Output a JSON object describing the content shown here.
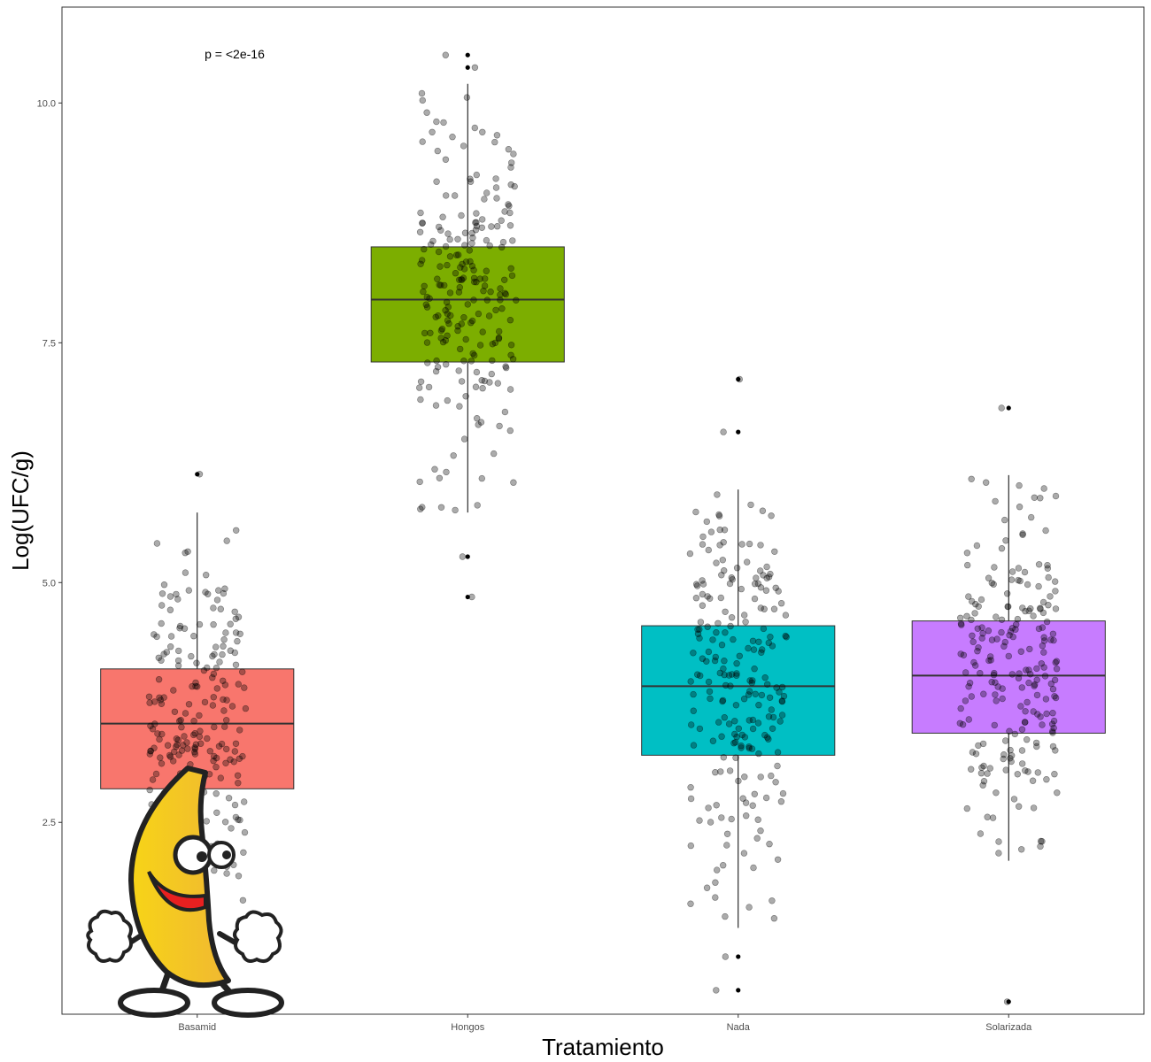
{
  "chart_data": {
    "type": "boxplot",
    "xlabel": "Tratamiento",
    "ylabel": "Log(UFC/g)",
    "annotation": "p = <2e-16",
    "categories": [
      "Basamid",
      "Hongos",
      "Nada",
      "Solarizada"
    ],
    "colors": [
      "#F8766D",
      "#7CAE00",
      "#00BFC4",
      "#C77CFF"
    ],
    "ylim": [
      0.5,
      11.0
    ],
    "yticks": [
      2.5,
      5.0,
      7.5,
      10.0
    ],
    "ytick_labels": [
      "2.5",
      "5.0",
      "7.5",
      "10.0"
    ],
    "grid": false,
    "legend": "none",
    "boxes": [
      {
        "name": "Basamid",
        "q1": 2.85,
        "median": 3.53,
        "q3": 4.1,
        "whisker_low": 1.4,
        "whisker_high": 5.73,
        "outliers": [
          6.13
        ]
      },
      {
        "name": "Hongos",
        "q1": 7.3,
        "median": 7.95,
        "q3": 8.5,
        "whisker_low": 5.73,
        "whisker_high": 10.2,
        "outliers": [
          10.5,
          10.37,
          5.27,
          4.85
        ]
      },
      {
        "name": "Nada",
        "q1": 3.2,
        "median": 3.92,
        "q3": 4.55,
        "whisker_low": 1.4,
        "whisker_high": 5.97,
        "outliers": [
          7.12,
          6.57,
          1.1,
          0.75
        ]
      },
      {
        "name": "Solarizada",
        "q1": 3.43,
        "median": 4.03,
        "q3": 4.6,
        "whisker_low": 2.1,
        "whisker_high": 6.12,
        "outliers": [
          6.82,
          0.63
        ]
      }
    ],
    "jitter_points_per_group": 220
  },
  "overlay": {
    "mascot": "dancing-banana-icon"
  }
}
